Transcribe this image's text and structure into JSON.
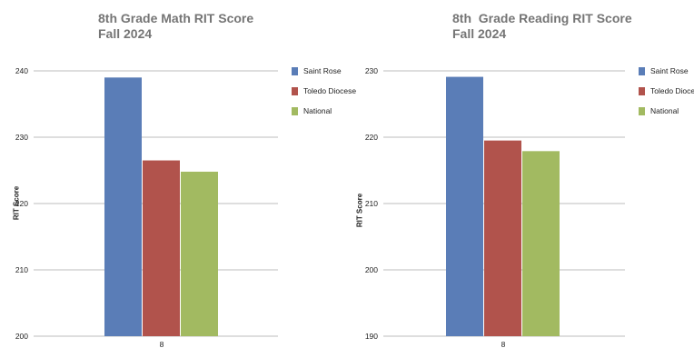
{
  "chart_data": [
    {
      "type": "bar",
      "title": "8th Grade Math RIT Score",
      "subtitle": "Fall 2024",
      "xlabel": "",
      "ylabel": "RIT Score",
      "categories": [
        "8"
      ],
      "ylim": [
        200,
        240
      ],
      "yticks": [
        200,
        210,
        220,
        230,
        240
      ],
      "grid": true,
      "legend": "right",
      "series": [
        {
          "name": "Saint Rose",
          "color": "#5a7db7",
          "values": [
            239
          ]
        },
        {
          "name": "Toledo Diocese",
          "color": "#b1534c",
          "values": [
            226.5
          ]
        },
        {
          "name": "National",
          "color": "#a2ba61",
          "values": [
            224.8
          ]
        }
      ]
    },
    {
      "type": "bar",
      "title": "8th  Grade Reading RIT Score",
      "subtitle": "Fall 2024",
      "xlabel": "",
      "ylabel": "RIT Score",
      "categories": [
        "8"
      ],
      "ylim": [
        190,
        230
      ],
      "yticks": [
        190,
        200,
        210,
        220,
        230
      ],
      "grid": true,
      "legend": "right",
      "series": [
        {
          "name": "Saint Rose",
          "color": "#5a7db7",
          "values": [
            229.1
          ]
        },
        {
          "name": "Toledo Diocese",
          "color": "#b1534c",
          "values": [
            219.5
          ]
        },
        {
          "name": "National",
          "color": "#a2ba61",
          "values": [
            217.9
          ]
        }
      ]
    }
  ]
}
